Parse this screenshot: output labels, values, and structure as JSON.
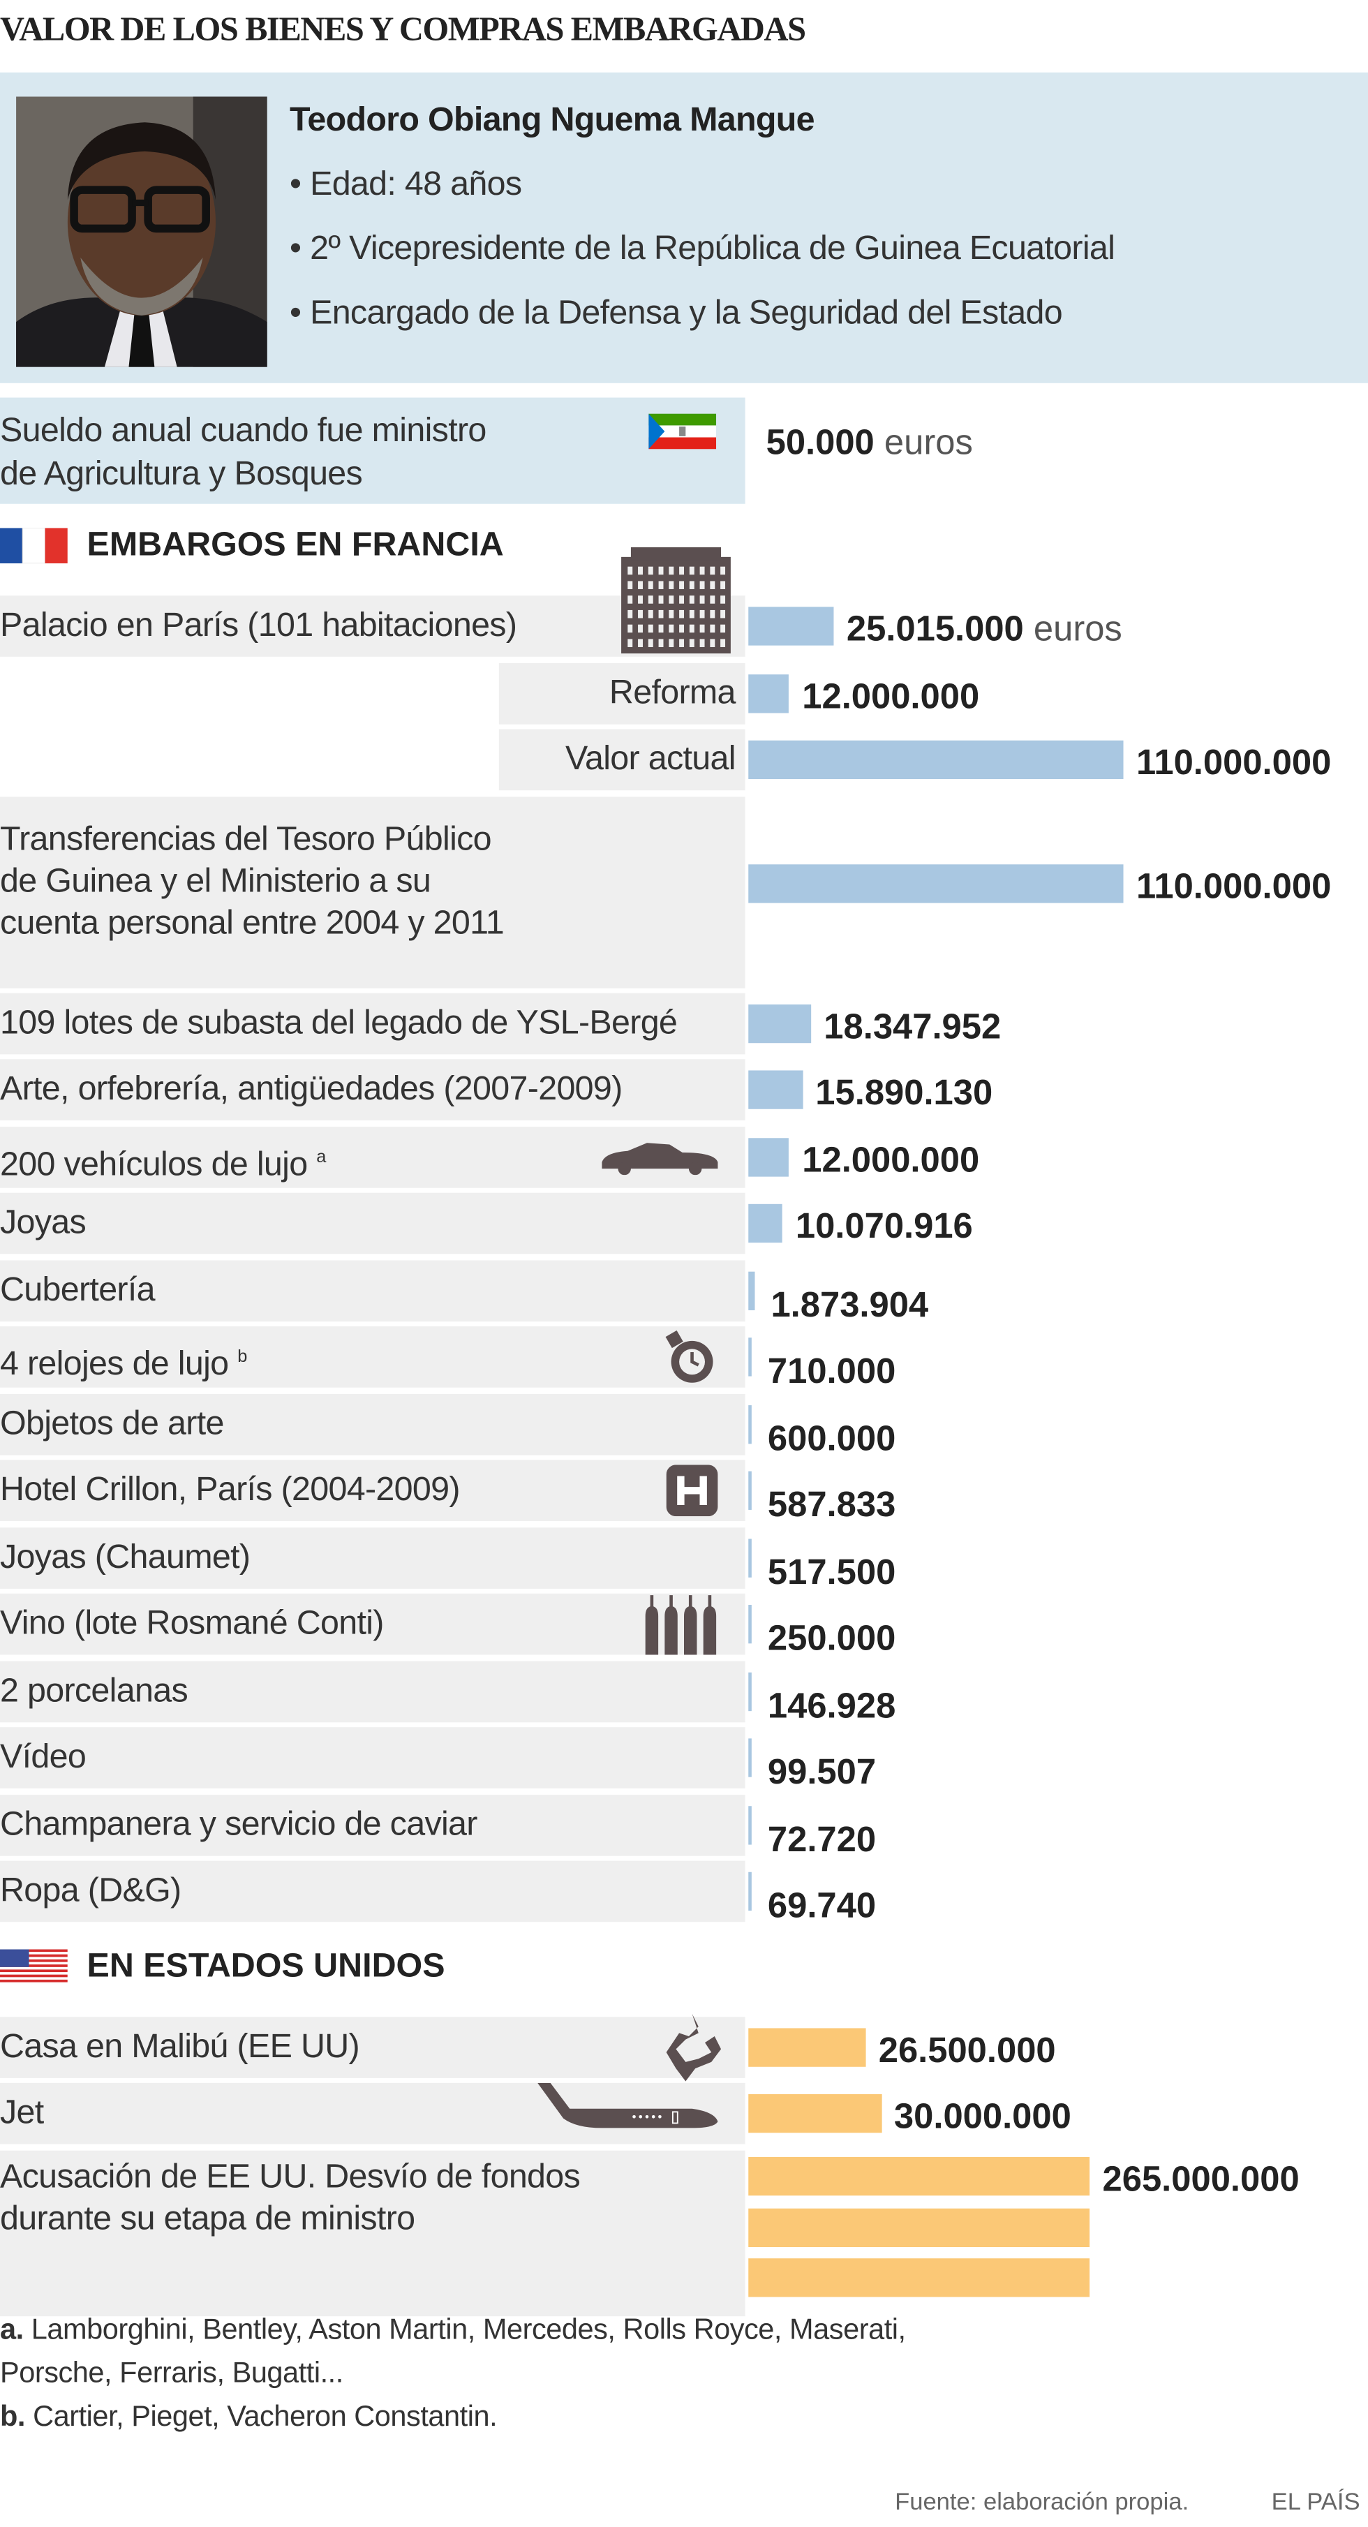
{
  "title": "VALOR DE LOS BIENES Y COMPRAS EMBARGADAS",
  "profile": {
    "name": "Teodoro Obiang Nguema Mangue",
    "bullets": [
      "• Edad: 48 años",
      "• 2º Vicepresidente de la República de Guinea Ecuatorial",
      "• Encargado de la Defensa y la Seguridad del Estado"
    ]
  },
  "salary": {
    "label_1": "Sueldo anual cuando fue ministro",
    "label_2": "de Agricultura y Bosques",
    "value": "50.000",
    "unit": "euros",
    "icon": "equatorial-guinea-flag-icon"
  },
  "colors": {
    "france_bar": "#a9c7e1",
    "usa_bar": "#fbc876",
    "panel": "#d9e8f0",
    "row": "#efefef"
  },
  "chart_data": {
    "type": "bar",
    "unit": "euros",
    "sections": [
      {
        "title": "EMBARGOS EN FRANCIA",
        "icon": "france-flag-icon",
        "items": [
          {
            "label": "Palacio en París (101 habitaciones)",
            "value": 25015000,
            "value_label": "25.015.000",
            "unit": "euros",
            "icon": "building-icon"
          },
          {
            "label": "Reforma",
            "value": 12000000,
            "value_label": "12.000.000",
            "sub": true
          },
          {
            "label": "Valor actual",
            "value": 110000000,
            "value_label": "110.000.000",
            "sub": true
          },
          {
            "label_lines": [
              "Transferencias del Tesoro Público",
              "de Guinea y el Ministerio a su",
              "cuenta personal entre 2004 y 2011"
            ],
            "value": 110000000,
            "value_label": "110.000.000",
            "tall": true
          },
          {
            "label": "109 lotes de subasta del legado de YSL-Bergé",
            "value": 18347952,
            "value_label": "18.347.952"
          },
          {
            "label": "Arte, orfebrería, antigüedades (2007-2009)",
            "value": 15890130,
            "value_label": "15.890.130"
          },
          {
            "label": "200 vehículos de lujo",
            "sup": "a",
            "value": 12000000,
            "value_label": "12.000.000",
            "icon": "car-icon"
          },
          {
            "label": "Joyas",
            "value": 10070916,
            "value_label": "10.070.916"
          },
          {
            "label": "Cubertería",
            "value": 1873904,
            "value_label": "1.873.904"
          },
          {
            "label": "4 relojes de lujo",
            "sup": "b",
            "value": 710000,
            "value_label": "710.000",
            "icon": "watch-icon"
          },
          {
            "label": "Objetos de arte",
            "value": 600000,
            "value_label": "600.000"
          },
          {
            "label": "Hotel Crillon, París (2004-2009)",
            "value": 587833,
            "value_label": "587.833",
            "icon": "hotel-icon"
          },
          {
            "label": "Joyas (Chaumet)",
            "value": 517500,
            "value_label": "517.500"
          },
          {
            "label": "Vino (lote Rosmané Conti)",
            "value": 250000,
            "value_label": "250.000",
            "icon": "wine-bottles-icon"
          },
          {
            "label": "2 porcelanas",
            "value": 146928,
            "value_label": "146.928"
          },
          {
            "label": "Vídeo",
            "value": 99507,
            "value_label": "99.507"
          },
          {
            "label": "Champanera y servicio de caviar",
            "value": 72720,
            "value_label": "72.720"
          },
          {
            "label": "Ropa (D&G)",
            "value": 69740,
            "value_label": "69.740"
          }
        ]
      },
      {
        "title": "EN ESTADOS UNIDOS",
        "icon": "usa-flag-icon",
        "items": [
          {
            "label": "Casa en Malibú (EE UU)",
            "value": 26500000,
            "value_label": "26.500.000",
            "icon": "house-icon"
          },
          {
            "label": "Jet",
            "value": 30000000,
            "value_label": "30.000.000",
            "icon": "jet-icon"
          },
          {
            "label_lines": [
              "Acusación de EE UU. Desvío de fondos",
              "durante su etapa de ministro"
            ],
            "value": 265000000,
            "value_label": "265.000.000",
            "broken_bar": true
          }
        ]
      }
    ]
  },
  "footnotes": [
    {
      "mark": "a.",
      "text": " Lamborghini, Bentley, Aston Martin, Mercedes, Rolls Royce, Maserati,",
      "text2": "Porsche, Ferraris, Bugatti..."
    },
    {
      "mark": "b.",
      "text": " Cartier, Pieget, Vacheron Constantin."
    }
  ],
  "source": "Fuente: elaboración propia.",
  "brand": "EL PAÍS"
}
